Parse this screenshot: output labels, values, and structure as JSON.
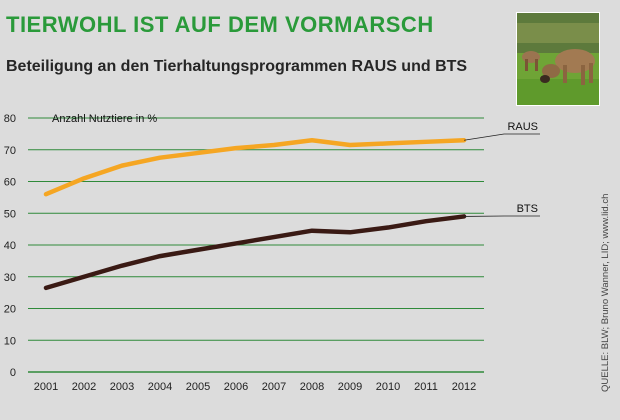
{
  "title": "TIERWOHL IST AUF DEM VORMARSCH",
  "subtitle": "Beteiligung an den Tierhaltungsprogrammen RAUS und BTS",
  "source": "QUELLE: BLW; Bruno Wanner, LID; www.lid.ch",
  "photo_icon": "cows-on-pasture",
  "colors": {
    "raus": "#f5a623",
    "bts": "#3a1a14",
    "grid": "#2f8a3a",
    "background": "#dcdcdc"
  },
  "chart_data": {
    "type": "line",
    "ylabel": "Anzahl Nutztiere in %",
    "xlabel": "",
    "ylim": [
      0,
      80
    ],
    "yticks": [
      "0",
      "10",
      "20",
      "30",
      "40",
      "50",
      "60",
      "70",
      "80"
    ],
    "categories": [
      "2001",
      "2002",
      "2003",
      "2004",
      "2005",
      "2006",
      "2007",
      "2008",
      "2009",
      "2010",
      "2011",
      "2012"
    ],
    "series": [
      {
        "name": "RAUS",
        "values": [
          56,
          61,
          65,
          67.5,
          69,
          70.5,
          71.5,
          73,
          71.5,
          72,
          72.5,
          73
        ]
      },
      {
        "name": "BTS",
        "values": [
          26.5,
          30,
          33.5,
          36.5,
          38.5,
          40.5,
          42.5,
          44.5,
          44,
          45.5,
          47.5,
          49
        ]
      }
    ]
  }
}
